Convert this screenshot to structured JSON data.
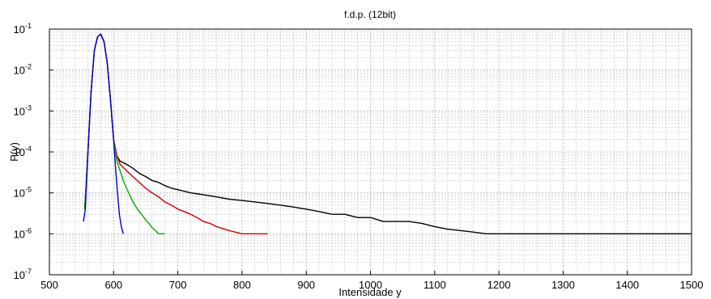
{
  "chart_data": {
    "type": "line",
    "title": "f.d.p. (12bit)",
    "xlabel": "Intensidade y",
    "ylabel": "P(y)",
    "xlim": [
      500,
      1500
    ],
    "ylim_exponent": [
      -7,
      -1
    ],
    "yscale": "log",
    "grid": true,
    "x_ticks": [
      500,
      600,
      700,
      800,
      900,
      1000,
      1100,
      1200,
      1300,
      1400,
      1500
    ],
    "y_ticks": [
      {
        "base": "10",
        "exp": "-1"
      },
      {
        "base": "10",
        "exp": "-2"
      },
      {
        "base": "10",
        "exp": "-3"
      },
      {
        "base": "10",
        "exp": "-4"
      },
      {
        "base": "10",
        "exp": "-5"
      },
      {
        "base": "10",
        "exp": "-6"
      },
      {
        "base": "10",
        "exp": "-7"
      }
    ],
    "series": [
      {
        "color": "#000000",
        "x": [
          555,
          560,
          565,
          570,
          575,
          580,
          585,
          590,
          595,
          600,
          605,
          610,
          620,
          630,
          640,
          650,
          660,
          670,
          680,
          690,
          700,
          720,
          740,
          760,
          780,
          800,
          820,
          840,
          860,
          880,
          900,
          920,
          940,
          960,
          980,
          1000,
          1020,
          1040,
          1060,
          1080,
          1100,
          1120,
          1140,
          1160,
          1180,
          1200,
          1220,
          1240,
          1260,
          1280,
          1300,
          1320,
          1340,
          1360,
          1380,
          1400,
          1420,
          1440,
          1460,
          1480,
          1500
        ],
        "y": [
          4e-06,
          0.0001,
          0.003,
          0.03,
          0.065,
          0.075,
          0.05,
          0.015,
          0.002,
          0.0002,
          8e-05,
          6e-05,
          5e-05,
          4e-05,
          3e-05,
          2.5e-05,
          2e-05,
          1.8e-05,
          1.5e-05,
          1.3e-05,
          1.2e-05,
          1e-05,
          9e-06,
          8e-06,
          7e-06,
          6.5e-06,
          6e-06,
          5.5e-06,
          5e-06,
          4.5e-06,
          4e-06,
          3.5e-06,
          3e-06,
          3e-06,
          2.5e-06,
          2.5e-06,
          2e-06,
          2e-06,
          2e-06,
          1.8e-06,
          1.5e-06,
          1.3e-06,
          1.2e-06,
          1.1e-06,
          1e-06,
          1e-06,
          1e-06,
          1e-06,
          1e-06,
          1e-06,
          1e-06,
          1e-06,
          1e-06,
          1e-06,
          1e-06,
          1e-06,
          1e-06,
          1e-06,
          1e-06,
          1e-06,
          1e-06
        ]
      },
      {
        "color": "#cc0000",
        "x": [
          555,
          560,
          565,
          570,
          575,
          580,
          585,
          590,
          595,
          600,
          605,
          610,
          620,
          630,
          640,
          650,
          660,
          670,
          680,
          690,
          700,
          710,
          720,
          730,
          740,
          750,
          760,
          780,
          800,
          820,
          840
        ],
        "y": [
          4e-06,
          0.0001,
          0.003,
          0.03,
          0.065,
          0.075,
          0.05,
          0.015,
          0.002,
          0.0002,
          8e-05,
          5e-05,
          3.5e-05,
          2.5e-05,
          1.8e-05,
          1.3e-05,
          1e-05,
          8e-06,
          6e-06,
          5e-06,
          4e-06,
          3.5e-06,
          3e-06,
          2.5e-06,
          2e-06,
          1.8e-06,
          1.5e-06,
          1.2e-06,
          1e-06,
          1e-06,
          1e-06
        ]
      },
      {
        "color": "#00aa00",
        "x": [
          555,
          560,
          565,
          570,
          575,
          580,
          585,
          590,
          595,
          600,
          605,
          610,
          615,
          620,
          625,
          630,
          635,
          640,
          645,
          650,
          655,
          660,
          665,
          670,
          680
        ],
        "y": [
          4e-06,
          0.0001,
          0.003,
          0.03,
          0.065,
          0.075,
          0.05,
          0.015,
          0.002,
          0.0002,
          6e-05,
          3.5e-05,
          2e-05,
          1.3e-05,
          9e-06,
          6e-06,
          4.5e-06,
          3.5e-06,
          2.8e-06,
          2.2e-06,
          1.8e-06,
          1.4e-06,
          1.2e-06,
          1e-06,
          1e-06
        ]
      },
      {
        "color": "#0000cc",
        "x": [
          553,
          556,
          560,
          565,
          570,
          575,
          580,
          585,
          590,
          595,
          600,
          603,
          606,
          609,
          612,
          615
        ],
        "y": [
          2e-06,
          4e-06,
          0.0001,
          0.003,
          0.03,
          0.065,
          0.075,
          0.05,
          0.015,
          0.002,
          0.0002,
          4e-05,
          1e-05,
          3e-06,
          1.5e-06,
          1e-06
        ]
      }
    ]
  }
}
